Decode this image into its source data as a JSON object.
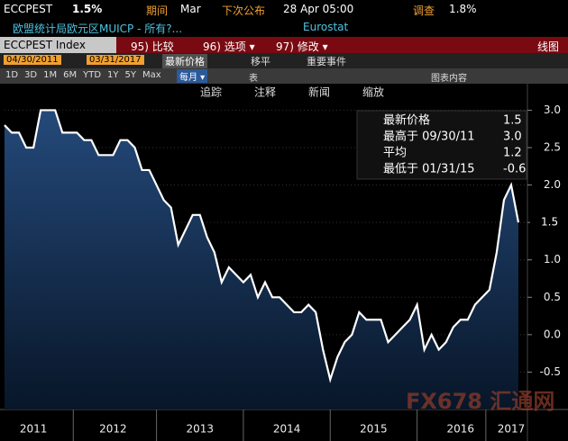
{
  "header": {
    "ticker": "ECCPEST",
    "last": "1.5%",
    "period_label": "期间",
    "period": "Mar",
    "next_label": "下次公布",
    "next": "28 Apr 05:00",
    "survey_label": "调查",
    "survey": "1.8%",
    "description": "欧盟统计局欧元区MUICP - 所有?...",
    "source": "Eurostat"
  },
  "menu": {
    "security": "ECCPEST Index",
    "compare": "95) 比较",
    "options": "96) 选项 ▾",
    "modify": "97) 修改 ▾",
    "chart_type": "线图"
  },
  "range": {
    "start": "04/30/2011",
    "end": "03/31/2017",
    "field": "最新价格",
    "smooth": "移平",
    "events": "重要事件"
  },
  "periods": {
    "buttons": [
      "1D",
      "3D",
      "1M",
      "6M",
      "YTD",
      "1Y",
      "5Y",
      "Max"
    ],
    "frequency": "每月 ▾",
    "table": "表",
    "contents": "图表内容"
  },
  "toolbar": [
    "追踪",
    "注释",
    "新闻",
    "缩放"
  ],
  "legend": [
    [
      "最新价格",
      "1.5"
    ],
    [
      "最高于 09/30/11",
      "3.0"
    ],
    [
      "平均",
      "1.2"
    ],
    [
      "最低于 01/31/15",
      "-0.6"
    ]
  ],
  "watermark": "FX678 汇通网",
  "chart_data": {
    "type": "line",
    "categories": [
      null,
      null,
      null,
      null,
      "2011",
      null,
      null,
      null,
      null,
      null,
      null,
      null,
      null,
      null,
      null,
      "2012",
      null,
      null,
      null,
      null,
      null,
      null,
      null,
      null,
      null,
      null,
      null,
      "2013",
      null,
      null,
      null,
      null,
      null,
      null,
      null,
      null,
      null,
      null,
      null,
      "2014",
      null,
      null,
      null,
      null,
      null,
      null,
      null,
      null,
      null,
      null,
      null,
      "2015",
      null,
      null,
      null,
      null,
      null,
      null,
      null,
      null,
      null,
      null,
      null,
      "2016",
      null,
      null,
      null,
      null,
      null,
      null,
      "2017",
      null
    ],
    "series": [
      {
        "name": "ECCPEST Index",
        "color": "#ffffff",
        "values": [
          2.8,
          2.7,
          2.7,
          2.5,
          2.5,
          3.0,
          3.0,
          3.0,
          2.7,
          2.7,
          2.7,
          2.6,
          2.6,
          2.4,
          2.4,
          2.4,
          2.6,
          2.6,
          2.5,
          2.2,
          2.2,
          2.0,
          1.8,
          1.7,
          1.2,
          1.4,
          1.6,
          1.6,
          1.3,
          1.1,
          0.7,
          0.9,
          0.8,
          0.7,
          0.8,
          0.5,
          0.7,
          0.5,
          0.5,
          0.4,
          0.3,
          0.3,
          0.4,
          0.3,
          -0.2,
          -0.6,
          -0.3,
          -0.1,
          0.0,
          0.3,
          0.2,
          0.2,
          0.2,
          -0.1,
          0.0,
          0.1,
          0.2,
          0.4,
          -0.2,
          0.0,
          -0.2,
          -0.1,
          0.1,
          0.2,
          0.2,
          0.4,
          0.5,
          0.6,
          1.1,
          1.8,
          2.0,
          1.5
        ],
        "value_labels": [
          null,
          null,
          null,
          null,
          null,
          null,
          null,
          null,
          null,
          null,
          null,
          null,
          null,
          null,
          null,
          null,
          null,
          null,
          null,
          null,
          null,
          null,
          null,
          null,
          null,
          null,
          null,
          null,
          null,
          null,
          null,
          null,
          null,
          null,
          null,
          null,
          null,
          null,
          null,
          null,
          null,
          null,
          null,
          null,
          null,
          null,
          null,
          null,
          null,
          null,
          null,
          null,
          null,
          null,
          null,
          null,
          null,
          null,
          null,
          null,
          null,
          null,
          null,
          null,
          null,
          null,
          null,
          null,
          null,
          null,
          null,
          "1.5"
        ]
      }
    ],
    "ylim": [
      -1.0,
      3.33
    ],
    "yticks": [
      -0.5,
      {
        "value": 0,
        "label": "0.0"
      },
      0.5,
      {
        "value": 1,
        "label": "1.0"
      },
      1.5,
      {
        "value": 2,
        "label": "2.0"
      },
      2.5,
      {
        "value": 3,
        "label": "3.0"
      }
    ],
    "grid": true
  }
}
